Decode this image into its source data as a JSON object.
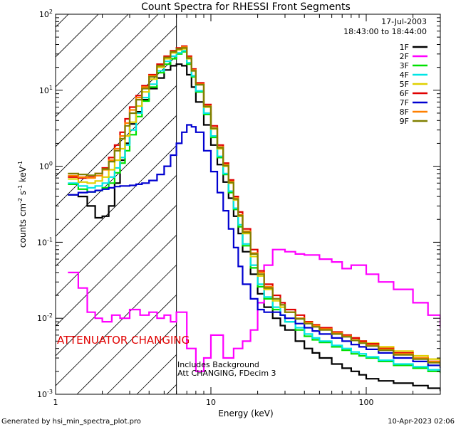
{
  "chart_data": {
    "type": "line",
    "title": "Count Spectra for RHESSI Front Segments",
    "xlabel": "Energy (keV)",
    "ylabel_parts": {
      "base": "counts cm",
      "exp1": "-2",
      "mid": " s",
      "exp2": "-1",
      "mid2": " keV",
      "exp3": "-1"
    },
    "xscale": "log",
    "yscale": "log",
    "xlim": [
      1,
      300
    ],
    "ylim": [
      0.001,
      100
    ],
    "x_ticks": [
      {
        "value": 1,
        "label": "1"
      },
      {
        "value": 10,
        "label": "10"
      },
      {
        "value": 100,
        "label": "100"
      }
    ],
    "y_ticks": [
      {
        "value": 0.001,
        "base": "10",
        "exp": "-3"
      },
      {
        "value": 0.01,
        "base": "10",
        "exp": "-2"
      },
      {
        "value": 0.1,
        "base": "10",
        "exp": "-1"
      },
      {
        "value": 1,
        "base": "10",
        "exp": "0"
      },
      {
        "value": 10,
        "base": "10",
        "exp": "1"
      },
      {
        "value": 100,
        "base": "10",
        "exp": "2"
      }
    ],
    "date": "17-Jul-2003",
    "time_range": "18:43:00 to 18:44:00",
    "attenuator_label": "ATTENUATOR CHANGING",
    "attenuator_boundary_kev": 6,
    "notes": [
      "Includes Background",
      "Att CHANGING, FDecim 3"
    ],
    "legend_position": "top-right",
    "series": [
      {
        "name": "1F",
        "color": "#000000",
        "x": [
          1.2,
          1.4,
          1.6,
          1.8,
          2.0,
          2.2,
          2.4,
          2.6,
          2.8,
          3.0,
          3.3,
          3.6,
          4.0,
          4.5,
          5.0,
          5.5,
          6.0,
          6.5,
          7.0,
          7.5,
          8,
          9,
          10,
          11,
          12,
          13,
          14,
          15,
          16,
          18,
          20,
          22,
          25,
          28,
          30,
          35,
          40,
          45,
          50,
          60,
          70,
          80,
          90,
          100,
          120,
          150,
          200,
          250,
          300
        ],
        "values": [
          0.42,
          0.4,
          0.3,
          0.21,
          0.22,
          0.3,
          0.6,
          1.2,
          2.0,
          3.6,
          5.2,
          7.5,
          10.5,
          14.5,
          18.5,
          21,
          22,
          21,
          16,
          11,
          7,
          3.5,
          1.9,
          1.05,
          0.62,
          0.38,
          0.22,
          0.13,
          0.075,
          0.038,
          0.021,
          0.014,
          0.01,
          0.008,
          0.007,
          0.005,
          0.004,
          0.0035,
          0.003,
          0.0025,
          0.0022,
          0.002,
          0.0018,
          0.0016,
          0.0015,
          0.0014,
          0.0013,
          0.0012,
          0.0011
        ]
      },
      {
        "name": "2F",
        "color": "#ff00ff",
        "x": [
          1.2,
          1.4,
          1.6,
          1.8,
          2.0,
          2.3,
          2.6,
          3.0,
          3.5,
          4,
          4.5,
          5,
          5.5,
          6,
          7,
          8,
          9,
          10,
          12,
          14,
          16,
          18,
          20,
          22,
          25,
          30,
          35,
          40,
          50,
          60,
          70,
          80,
          100,
          120,
          150,
          200,
          250,
          300
        ],
        "values": [
          0.04,
          0.025,
          0.012,
          0.01,
          0.009,
          0.011,
          0.01,
          0.013,
          0.011,
          0.012,
          0.01,
          0.011,
          0.009,
          0.012,
          0.004,
          0.002,
          0.003,
          0.006,
          0.003,
          0.004,
          0.005,
          0.007,
          0.016,
          0.05,
          0.08,
          0.075,
          0.07,
          0.068,
          0.06,
          0.055,
          0.045,
          0.05,
          0.038,
          0.03,
          0.024,
          0.016,
          0.011,
          0.0075
        ]
      },
      {
        "name": "3F",
        "color": "#00e000",
        "x": [
          1.2,
          1.4,
          1.6,
          1.8,
          2.0,
          2.2,
          2.4,
          2.6,
          2.8,
          3.0,
          3.3,
          3.6,
          4.0,
          4.5,
          5.0,
          5.5,
          6.0,
          6.5,
          7.0,
          7.5,
          8,
          9,
          10,
          11,
          12,
          13,
          14,
          15,
          16,
          18,
          20,
          22,
          25,
          28,
          30,
          35,
          40,
          45,
          50,
          60,
          70,
          80,
          90,
          100,
          120,
          150,
          200,
          250,
          300
        ],
        "values": [
          0.58,
          0.5,
          0.46,
          0.48,
          0.52,
          0.6,
          0.82,
          1.1,
          1.6,
          2.6,
          4.5,
          7.2,
          11,
          17,
          22,
          26,
          30,
          32,
          22,
          15,
          9.5,
          4.8,
          2.4,
          1.3,
          0.78,
          0.45,
          0.27,
          0.16,
          0.09,
          0.046,
          0.026,
          0.018,
          0.013,
          0.011,
          0.009,
          0.007,
          0.0058,
          0.0052,
          0.0048,
          0.0042,
          0.0038,
          0.0034,
          0.0032,
          0.003,
          0.0027,
          0.0024,
          0.0022,
          0.002,
          0.0019
        ]
      },
      {
        "name": "4F",
        "color": "#00e5e5",
        "x": [
          1.2,
          1.4,
          1.6,
          1.8,
          2.0,
          2.2,
          2.4,
          2.6,
          2.8,
          3.0,
          3.3,
          3.6,
          4.0,
          4.5,
          5.0,
          5.5,
          6.0,
          6.5,
          7.0,
          7.5,
          8,
          9,
          10,
          11,
          12,
          13,
          14,
          15,
          16,
          18,
          20,
          22,
          25,
          28,
          30,
          35,
          40,
          45,
          50,
          60,
          70,
          80,
          90,
          100,
          120,
          150,
          200,
          250,
          300
        ],
        "values": [
          0.6,
          0.55,
          0.52,
          0.55,
          0.6,
          0.72,
          0.95,
          1.3,
          1.9,
          3.0,
          5.0,
          8.0,
          12,
          18,
          24,
          28,
          31,
          33,
          23,
          15.5,
          9.8,
          5,
          2.5,
          1.35,
          0.8,
          0.47,
          0.28,
          0.17,
          0.095,
          0.05,
          0.028,
          0.019,
          0.014,
          0.011,
          0.009,
          0.0075,
          0.0062,
          0.0055,
          0.005,
          0.0044,
          0.004,
          0.0036,
          0.0034,
          0.0031,
          0.0028,
          0.0025,
          0.0023,
          0.0021,
          0.002
        ]
      },
      {
        "name": "5F",
        "color": "#e0d000",
        "x": [
          1.2,
          1.4,
          1.6,
          1.8,
          2.0,
          2.2,
          2.4,
          2.6,
          2.8,
          3.0,
          3.3,
          3.6,
          4.0,
          4.5,
          5.0,
          5.5,
          6.0,
          6.5,
          7.0,
          7.5,
          8,
          9,
          10,
          11,
          12,
          13,
          14,
          15,
          16,
          18,
          20,
          22,
          25,
          28,
          30,
          35,
          40,
          45,
          50,
          60,
          70,
          80,
          90,
          100,
          120,
          150,
          200,
          250,
          300
        ],
        "values": [
          0.68,
          0.62,
          0.6,
          0.64,
          0.72,
          0.9,
          1.2,
          1.7,
          2.5,
          3.8,
          6.2,
          9.5,
          14,
          20,
          26,
          31,
          34,
          35,
          26,
          18,
          12,
          6,
          3.1,
          1.7,
          1.0,
          0.6,
          0.36,
          0.22,
          0.13,
          0.065,
          0.036,
          0.024,
          0.017,
          0.014,
          0.012,
          0.01,
          0.0085,
          0.0078,
          0.0072,
          0.0065,
          0.006,
          0.0055,
          0.005,
          0.0047,
          0.0042,
          0.0037,
          0.0032,
          0.0029,
          0.0026
        ]
      },
      {
        "name": "6F",
        "color": "#e00000",
        "x": [
          1.2,
          1.4,
          1.6,
          1.8,
          2.0,
          2.2,
          2.4,
          2.6,
          2.8,
          3.0,
          3.3,
          3.6,
          4.0,
          4.5,
          5.0,
          5.5,
          6.0,
          6.5,
          7.0,
          7.5,
          8,
          9,
          10,
          11,
          12,
          13,
          14,
          15,
          16,
          18,
          20,
          22,
          25,
          28,
          30,
          35,
          40,
          45,
          50,
          60,
          70,
          80,
          90,
          100,
          120,
          150,
          200,
          250,
          300
        ],
        "values": [
          0.72,
          0.7,
          0.72,
          0.8,
          0.95,
          1.3,
          1.9,
          2.8,
          4.2,
          6,
          8.5,
          11.5,
          16,
          22,
          28,
          33,
          36,
          38,
          28,
          19,
          12.5,
          6.5,
          3.4,
          1.9,
          1.1,
          0.66,
          0.4,
          0.25,
          0.15,
          0.08,
          0.042,
          0.028,
          0.02,
          0.016,
          0.013,
          0.011,
          0.009,
          0.0082,
          0.0075,
          0.0066,
          0.006,
          0.0055,
          0.005,
          0.0046,
          0.004,
          0.0035,
          0.003,
          0.0027,
          0.0025
        ]
      },
      {
        "name": "7F",
        "color": "#0000d0",
        "x": [
          1.2,
          1.4,
          1.6,
          1.8,
          2.0,
          2.2,
          2.4,
          2.6,
          2.8,
          3.0,
          3.3,
          3.6,
          4.0,
          4.5,
          5.0,
          5.5,
          6.0,
          6.5,
          7.0,
          7.5,
          8,
          9,
          10,
          11,
          12,
          13,
          14,
          15,
          16,
          18,
          20,
          22,
          25,
          28,
          30,
          35,
          40,
          45,
          50,
          60,
          70,
          80,
          90,
          100,
          120,
          150,
          200,
          250,
          300
        ],
        "values": [
          0.42,
          0.45,
          0.46,
          0.48,
          0.5,
          0.52,
          0.54,
          0.55,
          0.55,
          0.56,
          0.58,
          0.6,
          0.65,
          0.78,
          1.0,
          1.4,
          2.0,
          2.8,
          3.5,
          3.3,
          2.8,
          1.6,
          0.85,
          0.45,
          0.26,
          0.15,
          0.085,
          0.048,
          0.028,
          0.018,
          0.013,
          0.012,
          0.012,
          0.011,
          0.01,
          0.0085,
          0.0075,
          0.0068,
          0.0062,
          0.0055,
          0.005,
          0.0045,
          0.0042,
          0.0039,
          0.0035,
          0.003,
          0.0027,
          0.0024,
          0.0022
        ]
      },
      {
        "name": "8F",
        "color": "#ff8000",
        "x": [
          1.2,
          1.4,
          1.6,
          1.8,
          2.0,
          2.2,
          2.4,
          2.6,
          2.8,
          3.0,
          3.3,
          3.6,
          4.0,
          4.5,
          5.0,
          5.5,
          6.0,
          6.5,
          7.0,
          7.5,
          8,
          9,
          10,
          11,
          12,
          13,
          14,
          15,
          16,
          18,
          20,
          22,
          25,
          28,
          30,
          35,
          40,
          45,
          50,
          60,
          70,
          80,
          90,
          100,
          120,
          150,
          200,
          250,
          300
        ],
        "values": [
          0.75,
          0.72,
          0.7,
          0.75,
          0.9,
          1.2,
          1.7,
          2.5,
          3.7,
          5.5,
          8,
          11,
          15.5,
          21,
          27,
          32,
          35,
          37,
          27,
          18.5,
          12,
          6.2,
          3.2,
          1.8,
          1.05,
          0.63,
          0.38,
          0.23,
          0.14,
          0.072,
          0.04,
          0.026,
          0.018,
          0.015,
          0.012,
          0.01,
          0.0088,
          0.008,
          0.0072,
          0.0064,
          0.0058,
          0.0052,
          0.0048,
          0.0044,
          0.0039,
          0.0034,
          0.003,
          0.0027,
          0.0024
        ]
      },
      {
        "name": "9F",
        "color": "#808000",
        "x": [
          1.2,
          1.4,
          1.6,
          1.8,
          2.0,
          2.2,
          2.4,
          2.6,
          2.8,
          3.0,
          3.3,
          3.6,
          4.0,
          4.5,
          5.0,
          5.5,
          6.0,
          6.5,
          7.0,
          7.5,
          8,
          9,
          10,
          11,
          12,
          13,
          14,
          15,
          16,
          18,
          20,
          22,
          25,
          28,
          30,
          35,
          40,
          45,
          50,
          60,
          70,
          80,
          90,
          100,
          120,
          150,
          200,
          250,
          300
        ],
        "values": [
          0.8,
          0.78,
          0.76,
          0.8,
          0.92,
          1.15,
          1.6,
          2.3,
          3.4,
          5,
          7.5,
          10.5,
          15,
          21,
          27,
          32,
          35,
          36,
          26.5,
          18,
          11.8,
          6.1,
          3.15,
          1.75,
          1.02,
          0.61,
          0.37,
          0.225,
          0.135,
          0.07,
          0.038,
          0.025,
          0.018,
          0.015,
          0.012,
          0.0098,
          0.0085,
          0.0077,
          0.007,
          0.0062,
          0.0057,
          0.0051,
          0.0047,
          0.0043,
          0.0038,
          0.0033,
          0.0029,
          0.0026,
          0.0023
        ]
      }
    ]
  },
  "footer": {
    "generated_by": "Generated by hsi_min_spectra_plot.pro",
    "generated_on": "10-Apr-2023 02:06"
  }
}
